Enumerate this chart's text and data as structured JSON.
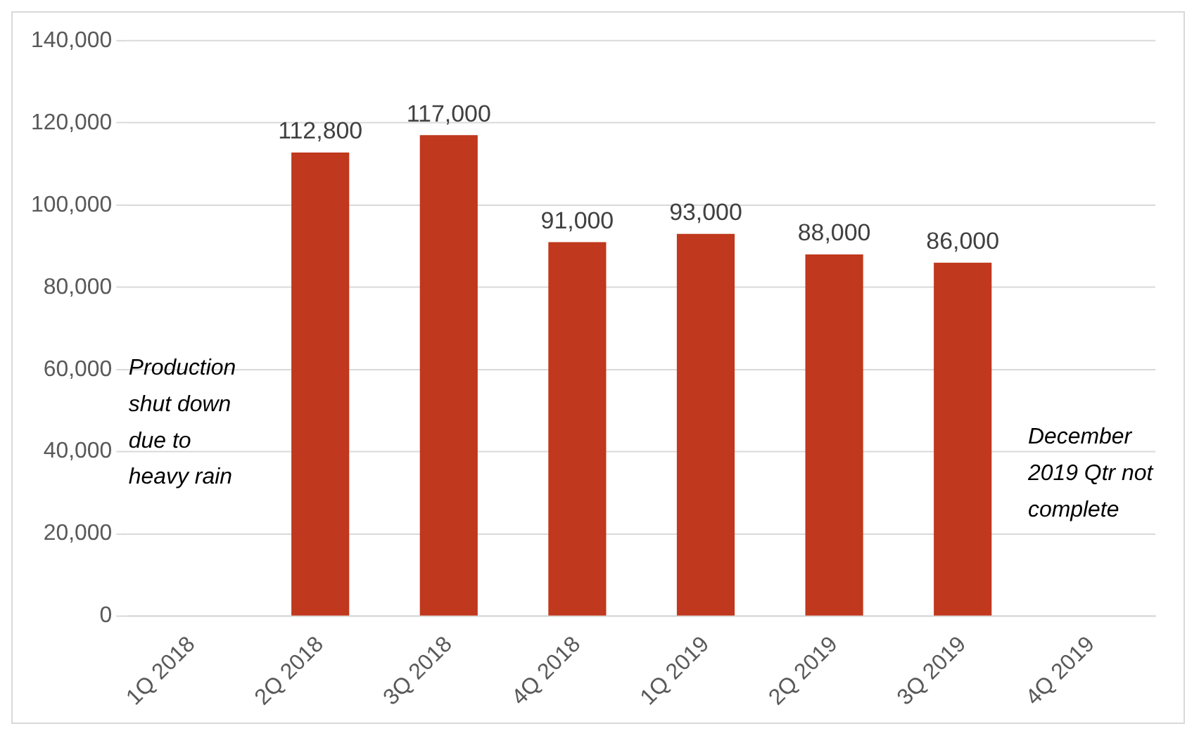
{
  "chart_data": {
    "type": "bar",
    "categories": [
      "1Q 2018",
      "2Q 2018",
      "3Q 2018",
      "4Q 2018",
      "1Q 2019",
      "2Q 2019",
      "3Q 2019",
      "4Q 2019"
    ],
    "values": [
      null,
      112800,
      117000,
      91000,
      93000,
      88000,
      86000,
      null
    ],
    "value_labels": [
      null,
      "112,800",
      "117,000",
      "91,000",
      "93,000",
      "88,000",
      "86,000",
      null
    ],
    "color": "#c0381d",
    "ylim": [
      0,
      140000
    ],
    "yticks": [
      0,
      {
        "value": 20000,
        "label": "20,000"
      },
      {
        "value": 40000,
        "label": "40,000"
      },
      {
        "value": 60000,
        "label": "60,000"
      },
      {
        "value": 80000,
        "label": "80,000"
      },
      {
        "value": 100000,
        "label": "100,000"
      },
      {
        "value": 120000,
        "label": "120,000"
      },
      {
        "value": 140000,
        "label": "140,000"
      }
    ],
    "grid": "y",
    "legend": false,
    "annotations": [
      "Production shut down due to heavy rain",
      "December 2019 Qtr not complete"
    ]
  }
}
